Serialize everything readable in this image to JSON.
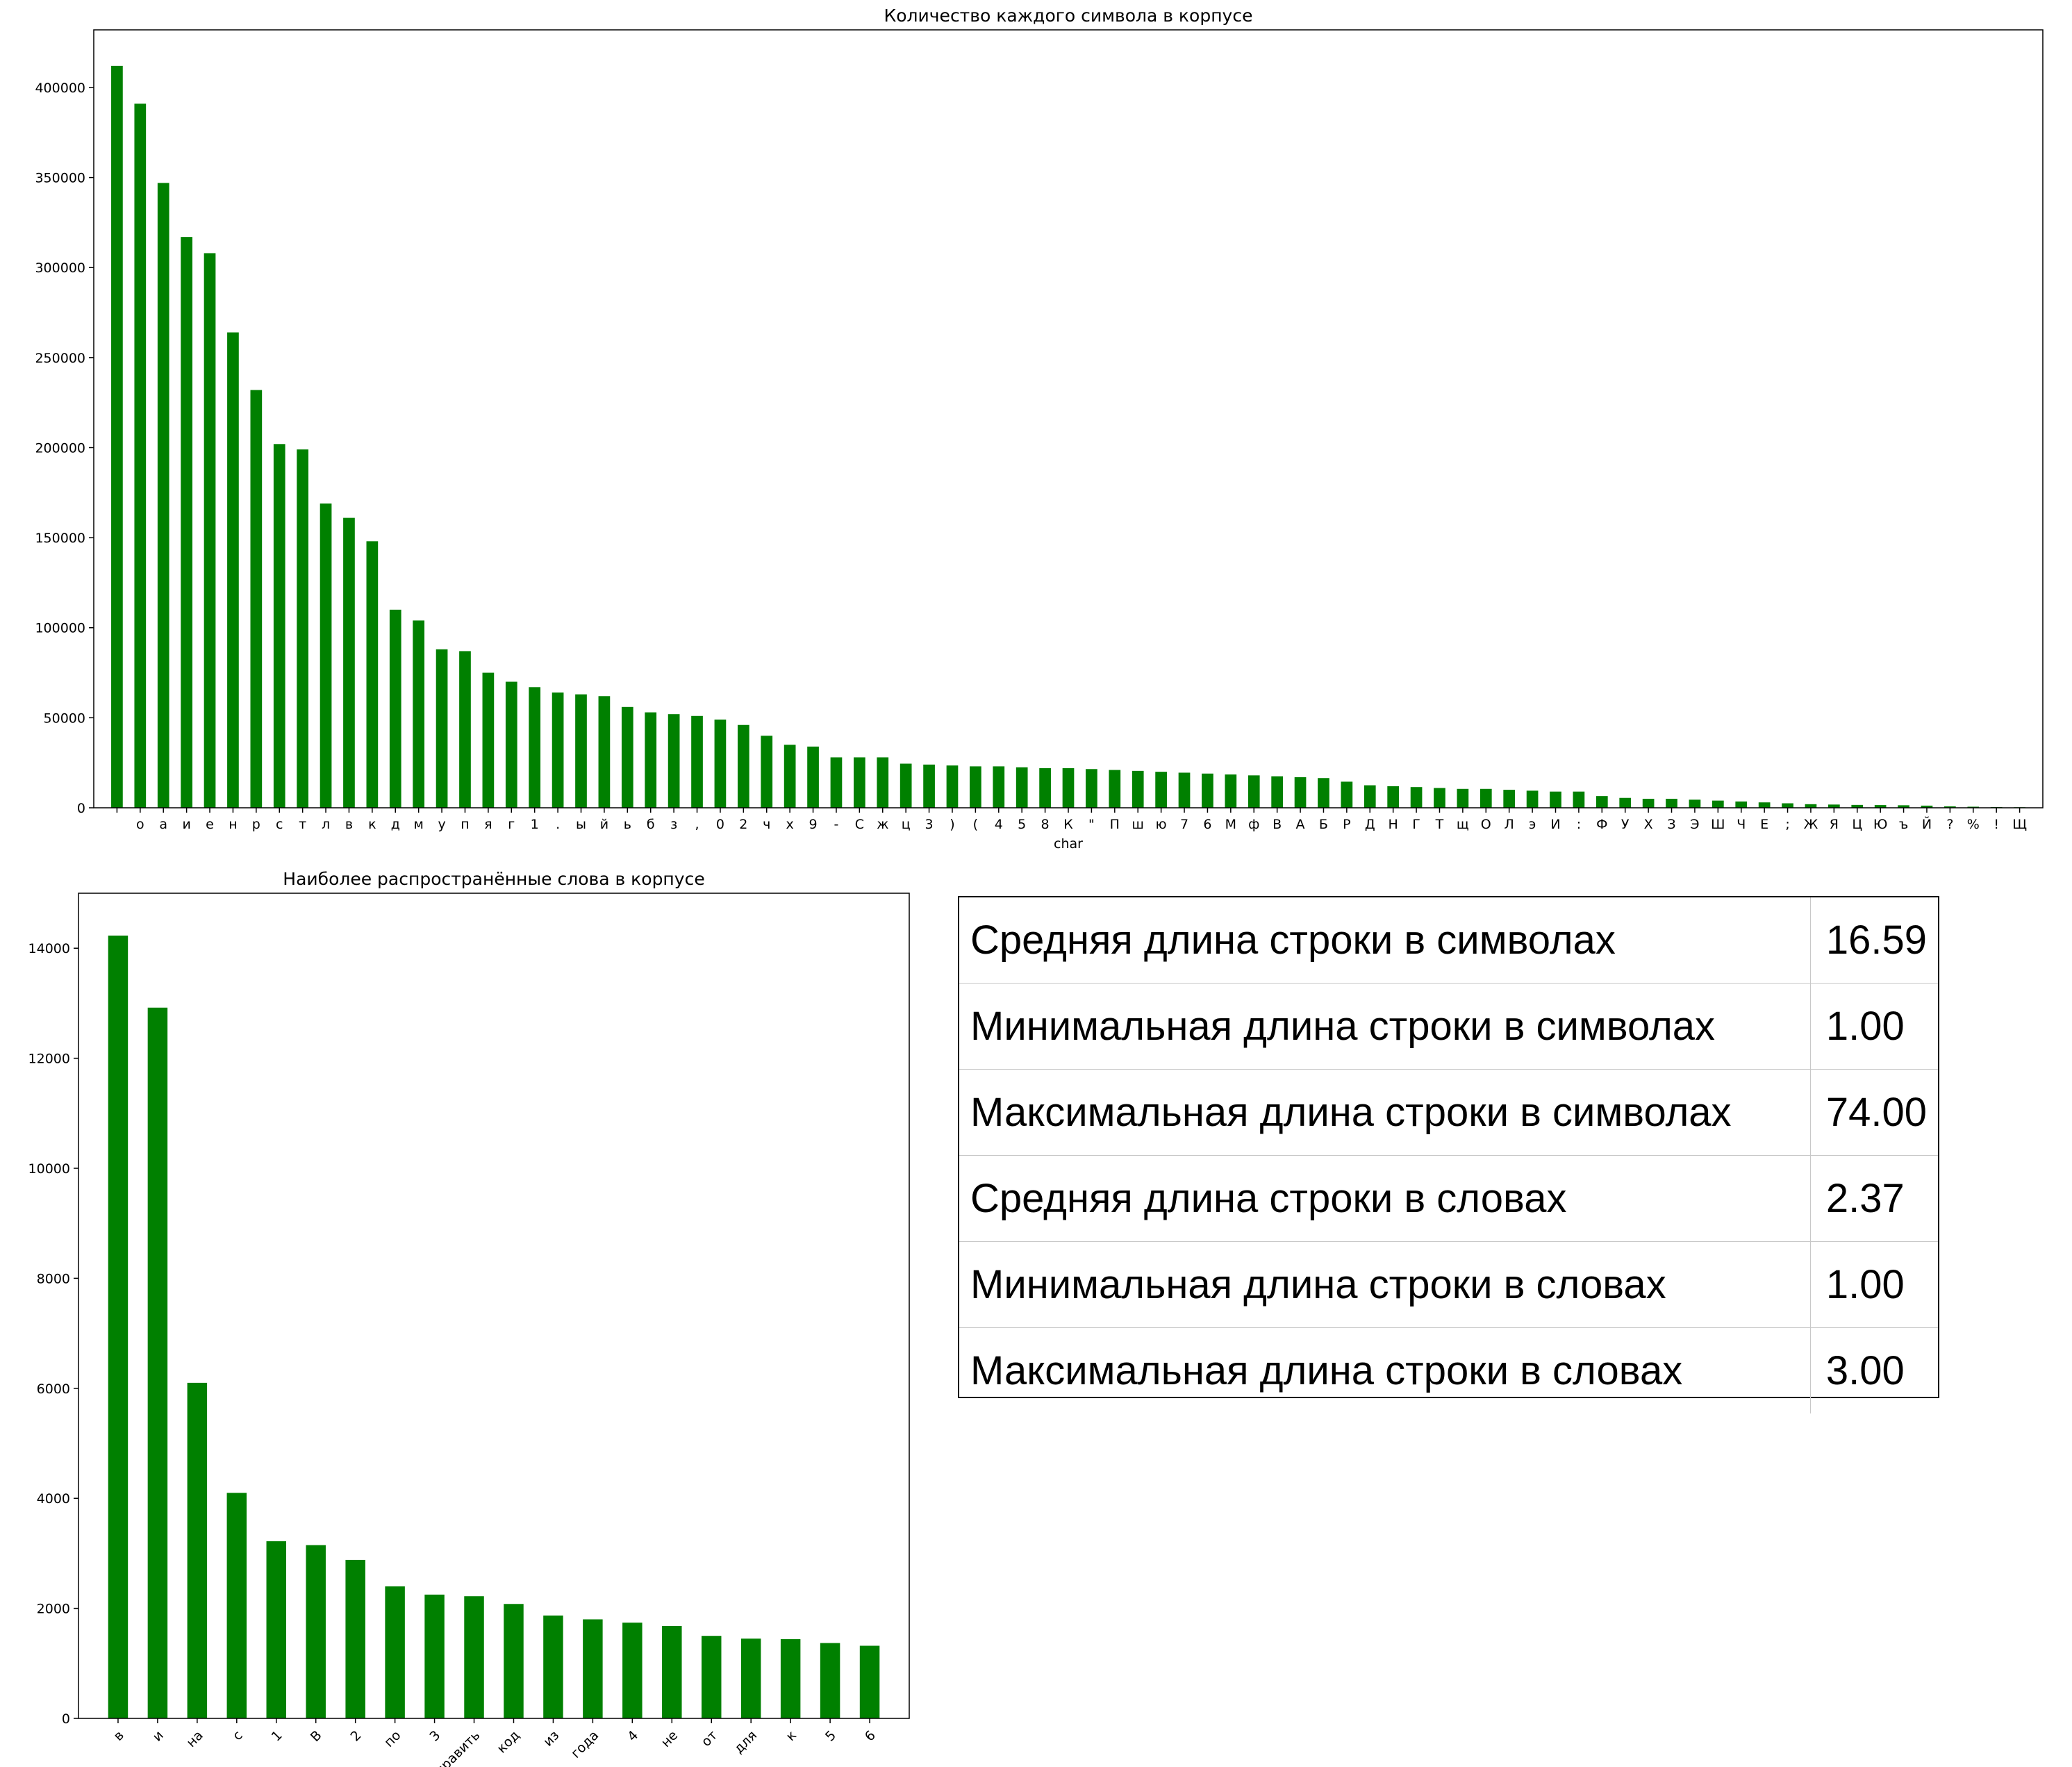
{
  "chart_data": [
    {
      "type": "bar",
      "title": "Количество каждого символа в корпусе",
      "xlabel": "char",
      "ylabel": "",
      "ylim": [
        0,
        432000
      ],
      "yticks": [
        0,
        50000,
        100000,
        150000,
        200000,
        250000,
        300000,
        350000,
        400000
      ],
      "legend": "none",
      "grid": false,
      "color": "#008000",
      "categories": [
        " ",
        "о",
        "а",
        "и",
        "е",
        "н",
        "р",
        "с",
        "т",
        "л",
        "в",
        "к",
        "д",
        "м",
        "у",
        "п",
        "я",
        "г",
        "1",
        ".",
        "ы",
        "й",
        "ь",
        "б",
        "з",
        ",",
        "0",
        "2",
        "ч",
        "х",
        "9",
        "-",
        "С",
        "ж",
        "ц",
        "3",
        ")",
        "(",
        "4",
        "5",
        "8",
        "К",
        "\"",
        "П",
        "ш",
        "ю",
        "7",
        "6",
        "М",
        "ф",
        "В",
        "А",
        "Б",
        "Р",
        "Д",
        "Н",
        "Г",
        "Т",
        "щ",
        "О",
        "Л",
        "э",
        "И",
        ":",
        "Ф",
        "У",
        "Х",
        "З",
        "Э",
        "Ш",
        "Ч",
        "Е",
        ";",
        "Ж",
        "Я",
        "Ц",
        "Ю",
        "ъ",
        "Й",
        "?",
        "%",
        "!",
        "Щ"
      ],
      "values": [
        412000,
        391000,
        347000,
        317000,
        308000,
        264000,
        232000,
        202000,
        199000,
        169000,
        161000,
        148000,
        110000,
        104000,
        88000,
        87000,
        75000,
        70000,
        67000,
        64000,
        63000,
        62000,
        56000,
        53000,
        52000,
        51000,
        49000,
        46000,
        40000,
        35000,
        34000,
        28000,
        28000,
        28000,
        24500,
        24000,
        23500,
        23000,
        23000,
        22500,
        22000,
        22000,
        21500,
        21000,
        20500,
        20000,
        19500,
        19000,
        18500,
        18000,
        17500,
        17000,
        16500,
        14500,
        12500,
        12000,
        11500,
        11000,
        10500,
        10500,
        10000,
        9500,
        9000,
        9000,
        6500,
        5500,
        5000,
        5000,
        4500,
        4000,
        3500,
        3000,
        2500,
        2000,
        1800,
        1600,
        1500,
        1400,
        1200,
        800,
        600,
        400,
        300
      ]
    },
    {
      "type": "bar",
      "title": "Наиболее распространённые слова в корпусе",
      "xlabel": "",
      "ylabel": "",
      "ylim": [
        0,
        15000
      ],
      "yticks": [
        0,
        2000,
        4000,
        6000,
        8000,
        10000,
        12000,
        14000
      ],
      "legend": "none",
      "grid": false,
      "color": "#008000",
      "categories": [
        "в",
        "и",
        "на",
        "с",
        "1",
        "В",
        "2",
        "по",
        "3",
        "править",
        "код",
        "из",
        "года",
        "4",
        "не",
        "от",
        "для",
        "к",
        "5",
        "6"
      ],
      "values": [
        14230,
        12920,
        6100,
        4100,
        3220,
        3150,
        2880,
        2400,
        2250,
        2220,
        2080,
        1870,
        1800,
        1740,
        1680,
        1500,
        1450,
        1440,
        1370,
        1320
      ]
    }
  ],
  "stats_table": [
    {
      "label": "Средняя длина строки в символах",
      "value": "16.59"
    },
    {
      "label": "Минимальная длина строки в символах",
      "value": "1.00"
    },
    {
      "label": "Максимальная длина строки в символах",
      "value": "74.00"
    },
    {
      "label": "Средняя длина строки в словах",
      "value": "2.37"
    },
    {
      "label": "Минимальная длина строки в словах",
      "value": "1.00"
    },
    {
      "label": "Максимальная длина строки в словах",
      "value": "3.00"
    }
  ]
}
